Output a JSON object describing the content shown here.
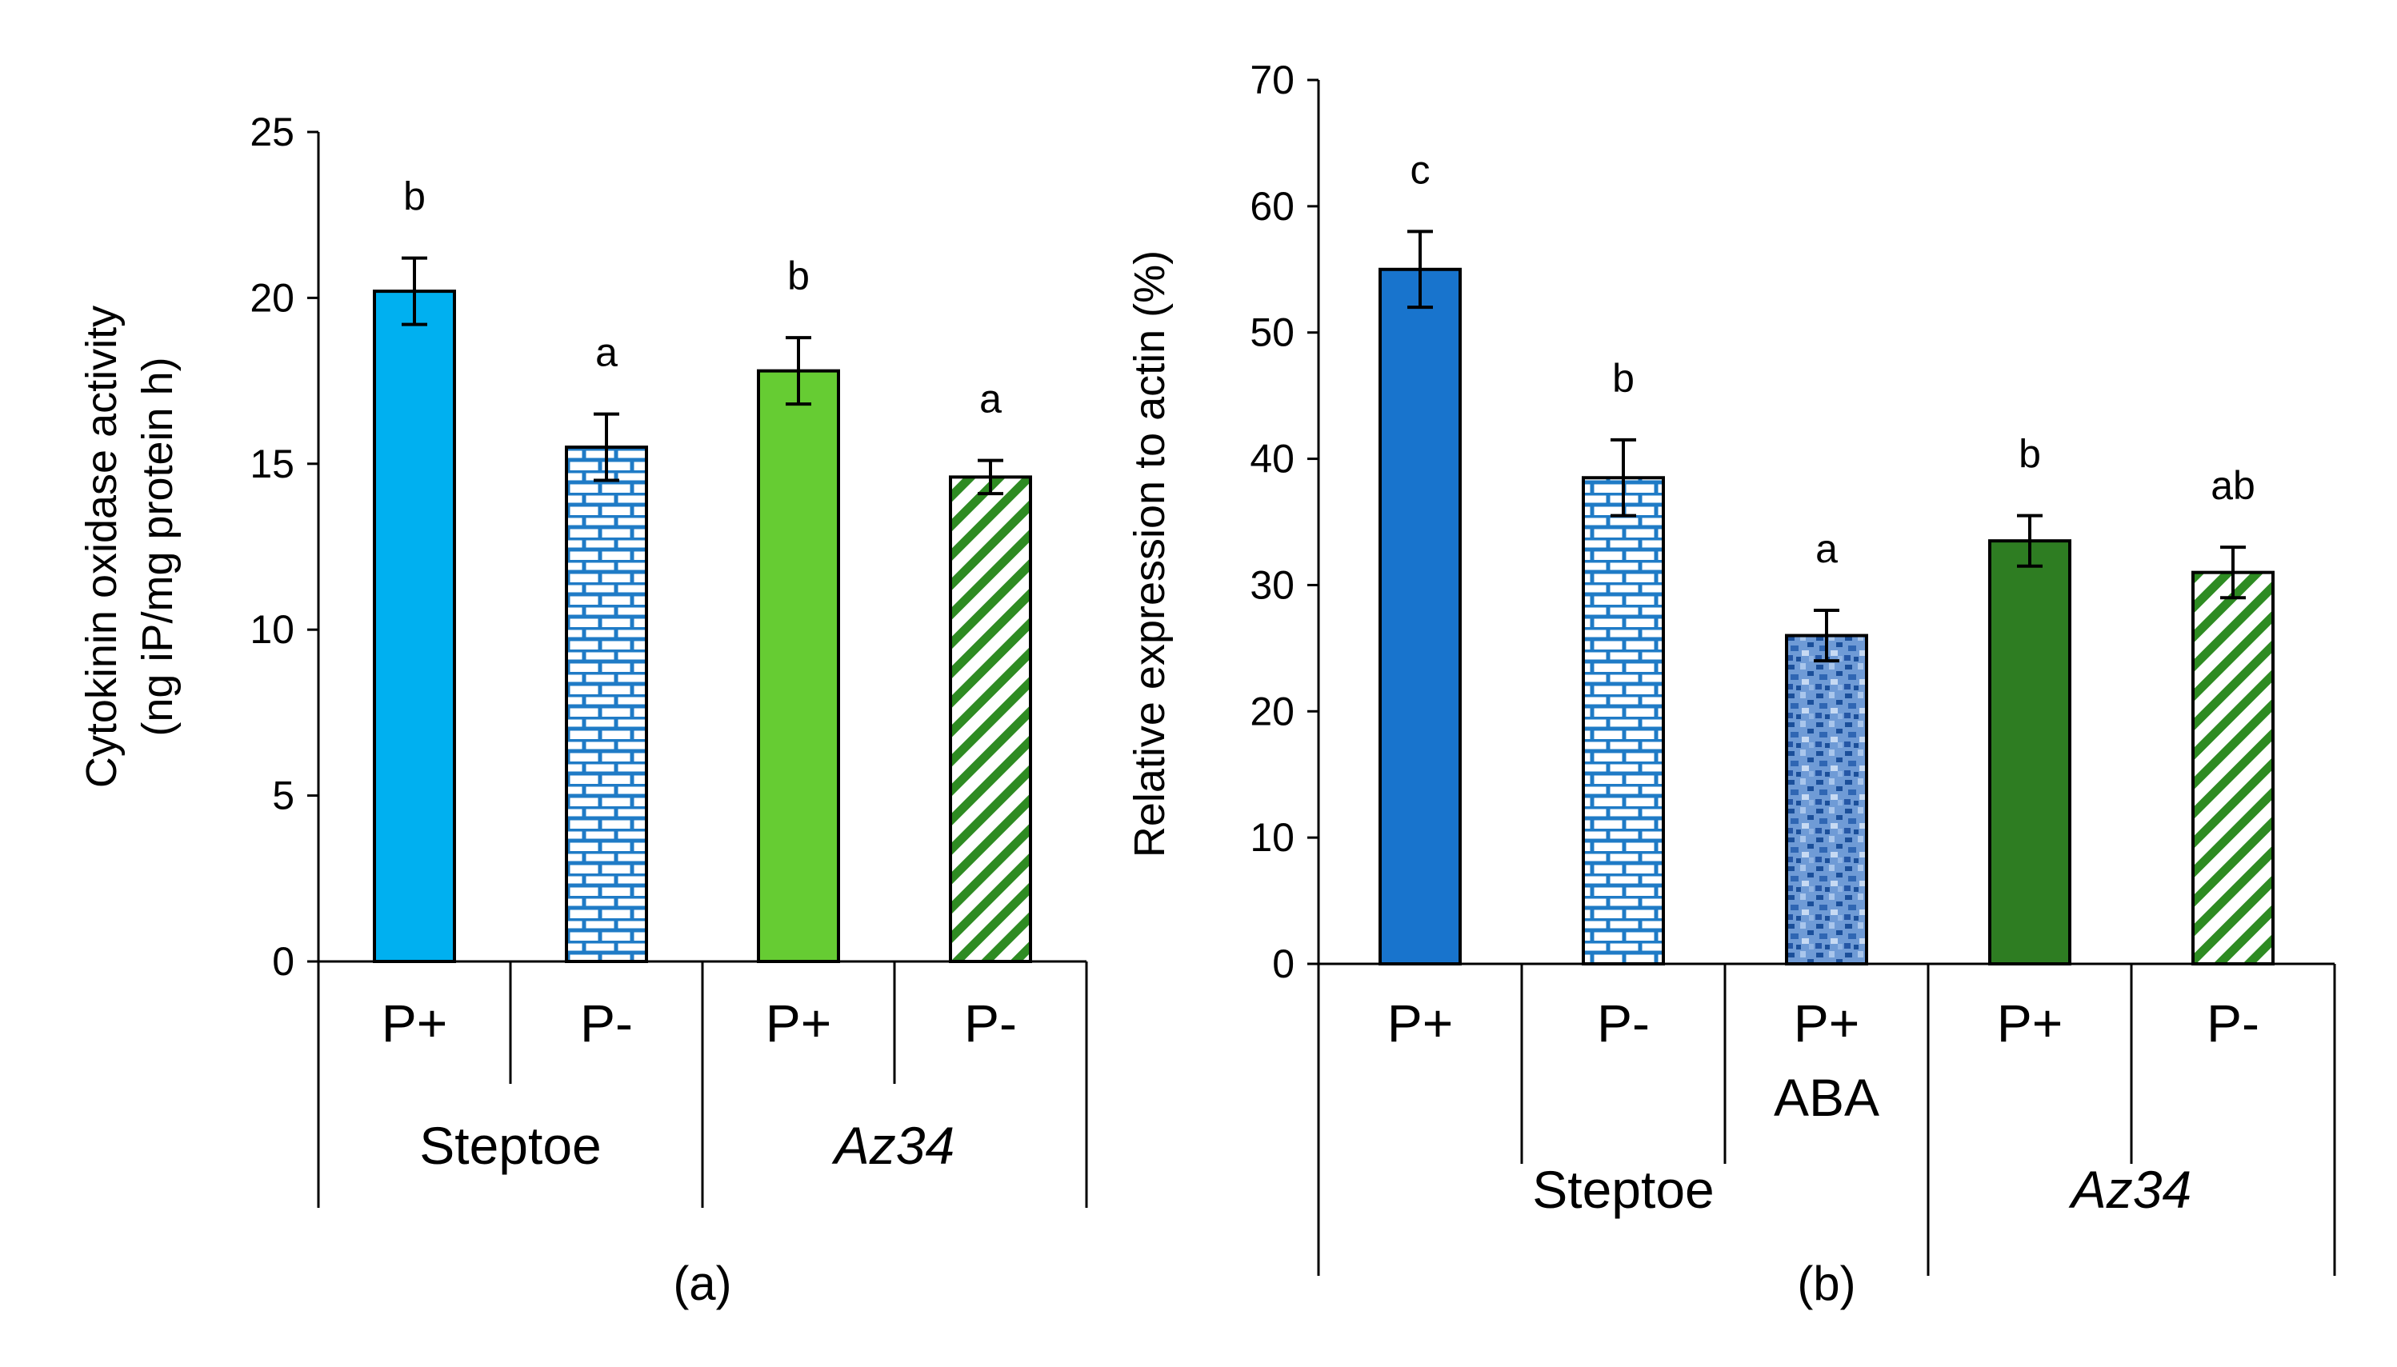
{
  "chart_data": [
    {
      "type": "bar",
      "panel_label": "(a)",
      "ylabel_line1": "Cytokinin oxidase activity",
      "ylabel_line2": "(ng iP/mg protein h)",
      "ylim": [
        0,
        25
      ],
      "yticks": [
        0,
        5,
        10,
        15,
        20,
        25
      ],
      "categories": [
        "P+",
        "P-",
        "P+",
        "P-"
      ],
      "values": [
        20.2,
        15.5,
        17.8,
        14.6
      ],
      "errors": [
        1.0,
        1.0,
        1.0,
        0.5
      ],
      "significance": [
        "b",
        "a",
        "b",
        "a"
      ],
      "patterns": [
        "solid",
        "brick",
        "solid",
        "diagonal"
      ],
      "colors": [
        "#00B0F0",
        "#1F7BC6",
        "#66CC33",
        "#2E8B22"
      ],
      "groups": [
        {
          "label": "Steptoe",
          "italic": false,
          "start": 0,
          "end": 1
        },
        {
          "label": "Az34",
          "italic": true,
          "start": 2,
          "end": 3
        }
      ]
    },
    {
      "type": "bar",
      "panel_label": "(b)",
      "ylabel": "Relative expression to actin (%)",
      "ylim": [
        0,
        70
      ],
      "yticks": [
        0,
        10,
        20,
        30,
        40,
        50,
        60,
        70
      ],
      "categories": [
        "P+",
        "P-",
        "P+\nABA",
        "P+",
        "P-"
      ],
      "values": [
        55.0,
        38.5,
        26.0,
        33.5,
        31.0
      ],
      "errors": [
        3.0,
        3.0,
        2.0,
        2.0,
        2.0
      ],
      "significance": [
        "c",
        "b",
        "a",
        "b",
        "ab"
      ],
      "patterns": [
        "solid",
        "brick",
        "mottled",
        "solid",
        "diagonal"
      ],
      "colors": [
        "#1874CD",
        "#1F7BC6",
        "#3A78C2",
        "#2E7D22",
        "#2E7D22"
      ],
      "groups": [
        {
          "label": "Steptoe",
          "italic": false,
          "start": 0,
          "end": 2
        },
        {
          "label": "Az34",
          "italic": true,
          "start": 3,
          "end": 4
        }
      ]
    }
  ]
}
